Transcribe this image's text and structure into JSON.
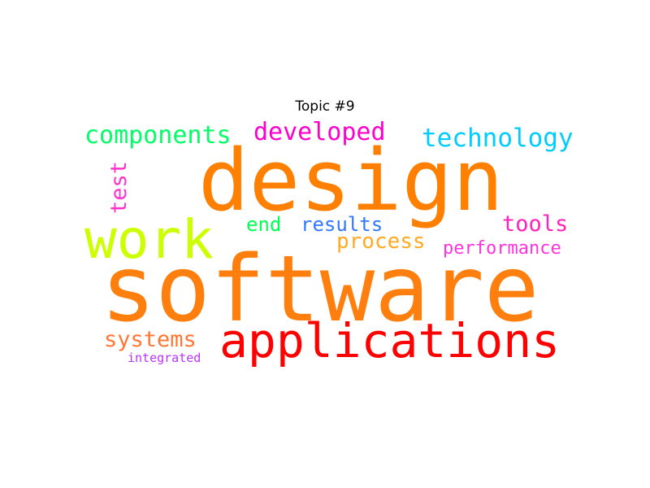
{
  "title": "Topic #9",
  "words": {
    "design": {
      "text": "design",
      "color": "#ff8000"
    },
    "software": {
      "text": "software",
      "color": "#ff7f0e"
    },
    "work": {
      "text": "work",
      "color": "#ccff00"
    },
    "applications": {
      "text": "applications",
      "color": "#ff0000"
    },
    "components": {
      "text": "components",
      "color": "#00ff66"
    },
    "developed": {
      "text": "developed",
      "color": "#ff00cc"
    },
    "technology": {
      "text": "technology",
      "color": "#00ccff"
    },
    "test": {
      "text": "test",
      "color": "#ff33cc"
    },
    "end": {
      "text": "end",
      "color": "#00ff55"
    },
    "results": {
      "text": "results",
      "color": "#3377ff"
    },
    "tools": {
      "text": "tools",
      "color": "#ff22bb"
    },
    "process": {
      "text": "process",
      "color": "#ffaa22"
    },
    "performance": {
      "text": "performance",
      "color": "#ff33dd"
    },
    "systems": {
      "text": "systems",
      "color": "#ff7733"
    },
    "integrated": {
      "text": "integrated",
      "color": "#bb33ff"
    }
  }
}
